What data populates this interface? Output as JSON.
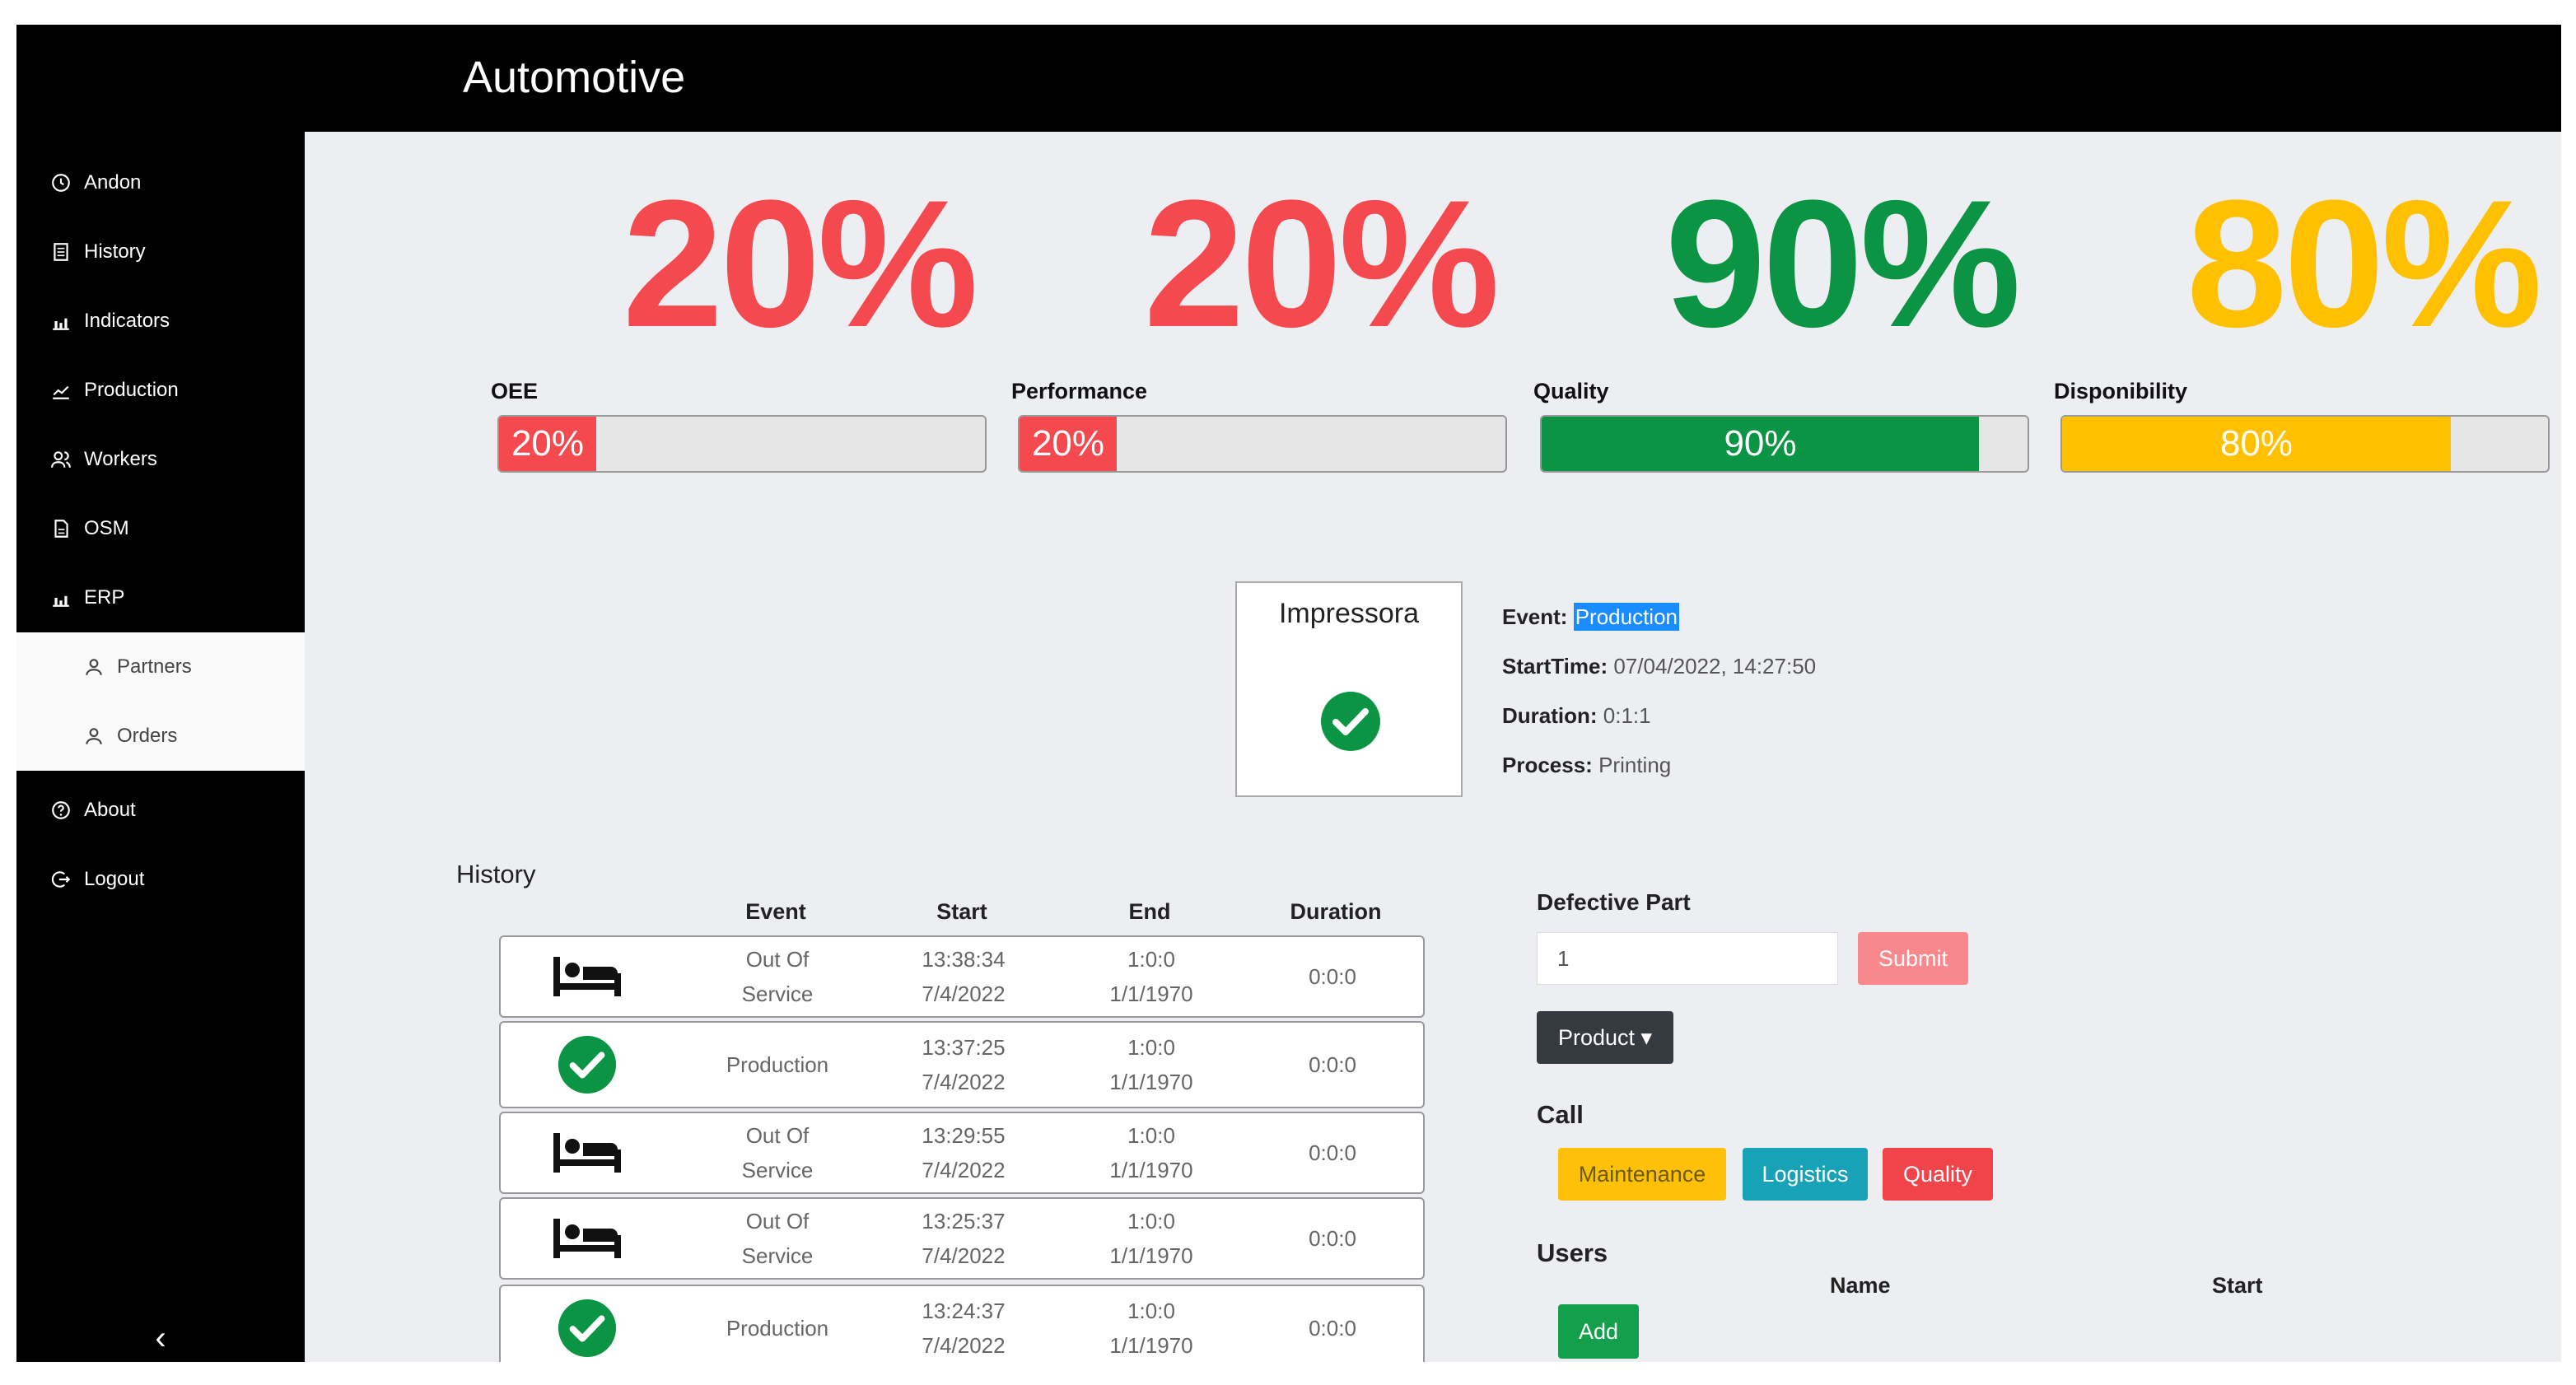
{
  "app": {
    "title": "Automotive"
  },
  "sidebar": {
    "items": [
      {
        "label": "Andon",
        "icon": "clock-icon"
      },
      {
        "label": "History",
        "icon": "document-icon"
      },
      {
        "label": "Indicators",
        "icon": "bar-chart-icon"
      },
      {
        "label": "Production",
        "icon": "line-chart-icon"
      },
      {
        "label": "Workers",
        "icon": "users-icon"
      },
      {
        "label": "OSM",
        "icon": "file-icon"
      },
      {
        "label": "ERP",
        "icon": "bar-chart-icon"
      }
    ],
    "subitems": [
      {
        "label": "Partners",
        "icon": "user-icon"
      },
      {
        "label": "Orders",
        "icon": "user-icon"
      }
    ],
    "bottom_items": [
      {
        "label": "About",
        "icon": "question-icon"
      },
      {
        "label": "Logout",
        "icon": "logout-icon"
      }
    ],
    "collapse_glyph": "‹"
  },
  "metrics": [
    {
      "name": "OEE",
      "big": "20%",
      "bar_label": "20%",
      "value": 0.2,
      "color": "#f4494f",
      "striped": false
    },
    {
      "name": "Performance",
      "big": "20%",
      "bar_label": "20%",
      "value": 0.2,
      "color": "#f4494f",
      "striped": false
    },
    {
      "name": "Quality",
      "big": "90%",
      "bar_label": "90%",
      "value": 0.9,
      "color": "#0b9444",
      "striped": true
    },
    {
      "name": "Disponibility",
      "big": "80%",
      "bar_label": "80%",
      "value": 0.8,
      "color": "#ffc000",
      "striped": false
    }
  ],
  "device": {
    "name": "Impressora",
    "status_icon": "check-circle-icon"
  },
  "event_info": {
    "event_label": "Event:",
    "event_value": "Production",
    "start_label": "StartTime:",
    "start_value": "07/04/2022, 14:27:50",
    "duration_label": "Duration:",
    "duration_value": "0:1:1",
    "process_label": "Process:",
    "process_value": "Printing"
  },
  "history": {
    "title": "History",
    "columns": [
      "Event",
      "Start",
      "End",
      "Duration"
    ],
    "rows": [
      {
        "icon": "bed-icon",
        "event_line1": "Out Of",
        "event_line2": "Service",
        "start_time": "13:38:34",
        "start_date": "7/4/2022",
        "end_time": "1:0:0",
        "end_date": "1/1/1970",
        "duration": "0:0:0"
      },
      {
        "icon": "check-circle-icon",
        "event_line1": "Production",
        "event_line2": "",
        "start_time": "13:37:25",
        "start_date": "7/4/2022",
        "end_time": "1:0:0",
        "end_date": "1/1/1970",
        "duration": "0:0:0"
      },
      {
        "icon": "bed-icon",
        "event_line1": "Out Of",
        "event_line2": "Service",
        "start_time": "13:29:55",
        "start_date": "7/4/2022",
        "end_time": "1:0:0",
        "end_date": "1/1/1970",
        "duration": "0:0:0"
      },
      {
        "icon": "bed-icon",
        "event_line1": "Out Of",
        "event_line2": "Service",
        "start_time": "13:25:37",
        "start_date": "7/4/2022",
        "end_time": "1:0:0",
        "end_date": "1/1/1970",
        "duration": "0:0:0"
      },
      {
        "icon": "check-circle-icon",
        "event_line1": "Production",
        "event_line2": "",
        "start_time": "13:24:37",
        "start_date": "7/4/2022",
        "end_time": "1:0:0",
        "end_date": "1/1/1970",
        "duration": "0:0:0"
      }
    ]
  },
  "defective_part": {
    "title": "Defective Part",
    "value": "1",
    "submit_label": "Submit",
    "submit_color": "#f8888b"
  },
  "product_dropdown": {
    "label": "Product ▾",
    "color": "#343a40"
  },
  "call": {
    "title": "Call",
    "buttons": [
      {
        "label": "Maintenance",
        "color": "#ffc107",
        "text_color": "#6b5a10"
      },
      {
        "label": "Logistics",
        "color": "#17a2b8",
        "text_color": "#ffffff"
      },
      {
        "label": "Quality",
        "color": "#f0434a",
        "text_color": "#ffffff"
      }
    ]
  },
  "users": {
    "title": "Users",
    "columns": [
      "Name",
      "Start"
    ],
    "add_label": "Add",
    "add_color": "#13a04c"
  }
}
